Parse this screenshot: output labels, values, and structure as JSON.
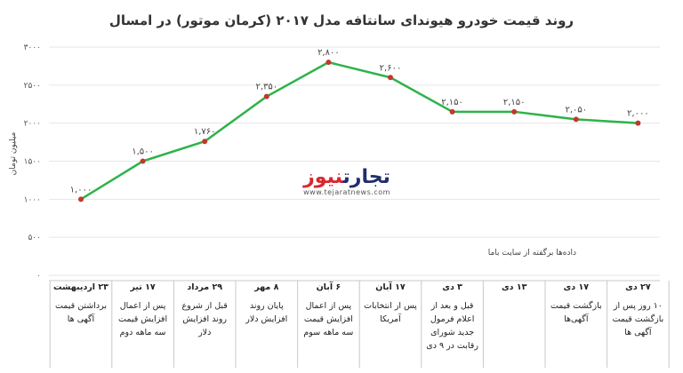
{
  "title": "روند قیمت خودرو هیوندای سانتافه مدل ۲۰۱۷ (کرمان موتور) در امسال",
  "source_note": "داده‌ها برگفته از سایت باما",
  "logo": {
    "main_part1": "تجارت",
    "main_part2": "نیوز",
    "sub": "www.tejaratnews.com"
  },
  "colors": {
    "line": "#2db34a",
    "marker": "#c0392b",
    "grid": "#e6e6e6",
    "border": "#c8c8c8"
  },
  "chart_data": {
    "type": "line",
    "ylabel": "میلیون تومان",
    "ylim": [
      0,
      3000
    ],
    "yticks": [
      0,
      500,
      1000,
      1500,
      2000,
      2500,
      3000
    ],
    "ytick_labels": [
      "۰",
      "۵۰۰",
      "۱۰۰۰",
      "۱۵۰۰",
      "۲۰۰۰",
      "۲۵۰۰",
      "۳۰۰۰"
    ],
    "grid": true,
    "values": [
      1000,
      1500,
      1760,
      2350,
      2800,
      2600,
      2150,
      2150,
      2050,
      2000
    ],
    "data_labels": [
      "۱,۰۰۰",
      "۱,۵۰۰",
      "۱,۷۶۰",
      "۲,۳۵۰",
      "۲,۸۰۰",
      "۲,۶۰۰",
      "۲,۱۵۰",
      "۲,۱۵۰",
      "۲,۰۵۰",
      "۲,۰۰۰"
    ],
    "categories": [
      {
        "date": "۲۳ اردیبهشت",
        "desc": "برداشتن قیمت آگهی ها"
      },
      {
        "date": "۱۷ تیر",
        "desc": "پس از اعمال افزایش قیمت سه ماهه دوم"
      },
      {
        "date": "۲۹ مرداد",
        "desc": "قبل از شروع روند افزایش دلار"
      },
      {
        "date": "۸ مهر",
        "desc": "پایان روند افزایش دلار"
      },
      {
        "date": "۶ آبان",
        "desc": "پس از اعمال افزایش قیمت سه ماهه سوم"
      },
      {
        "date": "۱۷ آبان",
        "desc": "پس از انتخابات آمریکا"
      },
      {
        "date": "۳ دی",
        "desc": "قبل و بعد از اعلام فرمول جدید شورای رقابت در ۹ دی"
      },
      {
        "date": "۱۳ دی",
        "desc": ""
      },
      {
        "date": "۱۷ دی",
        "desc": "بازگشت قیمت آگهی‌ها"
      },
      {
        "date": "۲۷ دی",
        "desc": "۱۰ روز پس از بازگشت قیمت آگهی ها"
      }
    ]
  }
}
